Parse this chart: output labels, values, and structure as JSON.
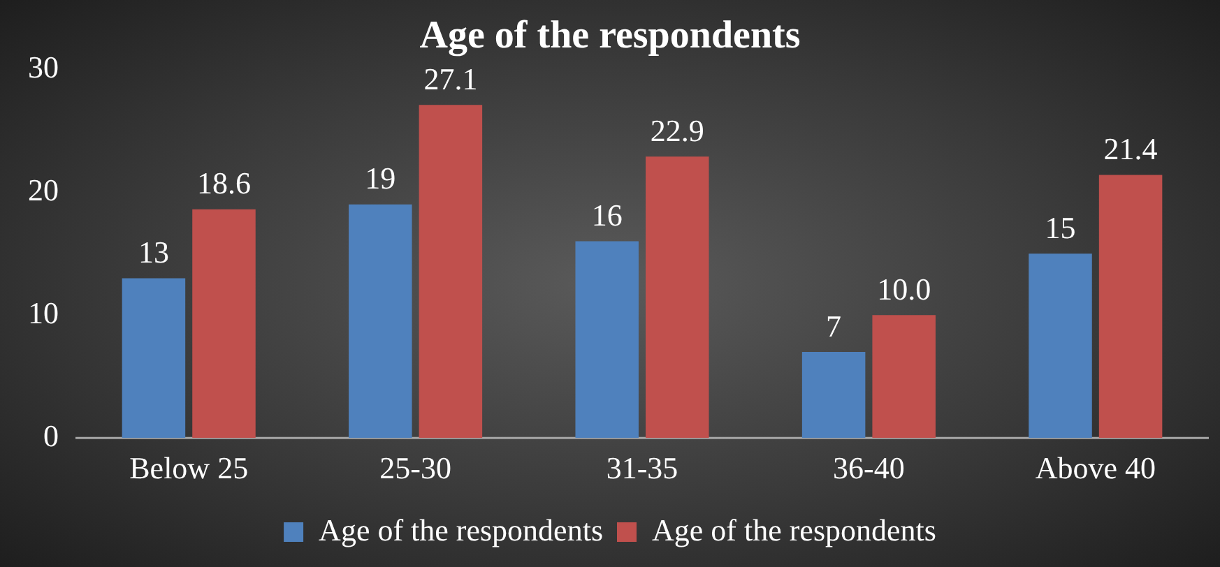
{
  "chart_data": {
    "type": "bar",
    "title": "Age of the respondents",
    "categories": [
      "Below 25",
      "25-30",
      "31-35",
      "36-40",
      "Above 40"
    ],
    "series": [
      {
        "name": "Age of the respondents",
        "color": "#4f81bd",
        "values": [
          13,
          19,
          16,
          7,
          15
        ],
        "value_labels": [
          "13",
          "19",
          "16",
          "7",
          "15"
        ]
      },
      {
        "name": "Age of the respondents",
        "color": "#c0504d",
        "values": [
          18.6,
          27.1,
          22.9,
          10.0,
          21.4
        ],
        "value_labels": [
          "18.6",
          "27.1",
          "22.9",
          "10.0",
          "21.4"
        ]
      }
    ],
    "ylim": [
      0,
      30
    ],
    "yticks": [
      0,
      10,
      20,
      30
    ],
    "grid": false,
    "legend": "bottom"
  }
}
